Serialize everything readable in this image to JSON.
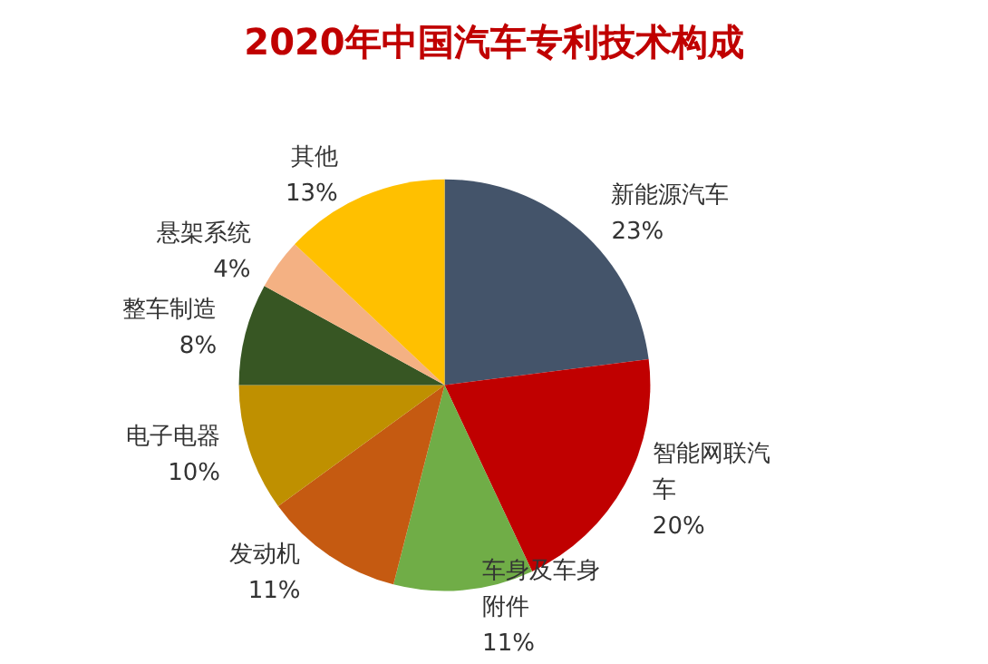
{
  "chart_data": {
    "type": "pie",
    "title": "2020年中国汽车专利技术构成",
    "categories": [
      "新能源汽车",
      "智能网联汽车",
      "车身及车身附件",
      "发动机",
      "电子电器",
      "整车制造",
      "悬架系统",
      "其他"
    ],
    "values": [
      23,
      20,
      11,
      11,
      10,
      8,
      4,
      13
    ],
    "value_labels": [
      "23%",
      "20%",
      "11%",
      "11%",
      "10%",
      "8%",
      "4%",
      "13%"
    ],
    "colors": [
      "#44546a",
      "#c00000",
      "#70ad47",
      "#c55a11",
      "#bf9000",
      "#375623",
      "#f4b183",
      "#ffc000"
    ],
    "legend": false
  }
}
